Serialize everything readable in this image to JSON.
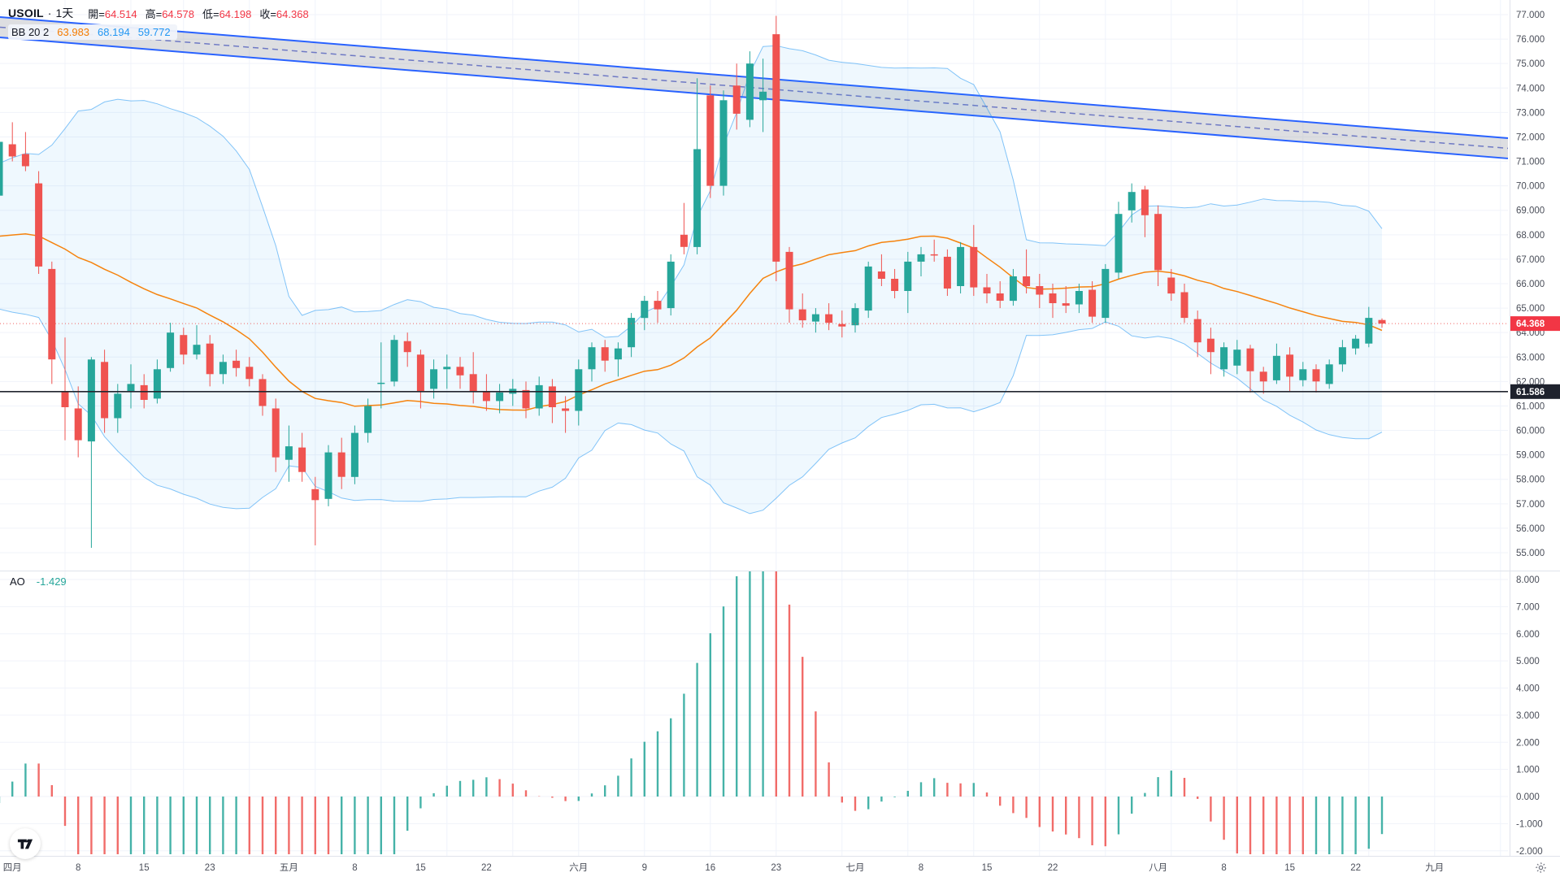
{
  "header": {
    "symbol": "USOIL",
    "separator": "·",
    "interval": "1天",
    "ohlc": [
      {
        "label": "開=",
        "value": "64.514"
      },
      {
        "label": "高=",
        "value": "64.578"
      },
      {
        "label": "低=",
        "value": "64.198"
      },
      {
        "label": "收=",
        "value": "64.368"
      }
    ],
    "ohlc_value_color": "#f23645"
  },
  "bb_legend": {
    "title": "BB 20 2",
    "values": [
      {
        "text": "63.983",
        "color": "#f57c00"
      },
      {
        "text": "68.194",
        "color": "#2196f3"
      },
      {
        "text": "59.772",
        "color": "#2196f3"
      }
    ]
  },
  "ao_legend": {
    "title": "AO",
    "value": "-1.429",
    "color": "#26a69a"
  },
  "chart_data": {
    "type": "candlestick",
    "symbol": "USOIL",
    "timeframe": "1D",
    "price_axis": {
      "min": 55,
      "max": 77,
      "step": 1,
      "decimals": 3
    },
    "ao_axis": {
      "min": -2,
      "max": 8,
      "step": 1,
      "decimals": 3
    },
    "time_labels": [
      {
        "i": 1,
        "t": "四月"
      },
      {
        "i": 6,
        "t": "8"
      },
      {
        "i": 11,
        "t": "15"
      },
      {
        "i": 16,
        "t": "23"
      },
      {
        "i": 22,
        "t": "五月"
      },
      {
        "i": 27,
        "t": "8"
      },
      {
        "i": 32,
        "t": "15"
      },
      {
        "i": 37,
        "t": "22"
      },
      {
        "i": 44,
        "t": "六月"
      },
      {
        "i": 49,
        "t": "9"
      },
      {
        "i": 54,
        "t": "16"
      },
      {
        "i": 59,
        "t": "23"
      },
      {
        "i": 65,
        "t": "七月"
      },
      {
        "i": 70,
        "t": "8"
      },
      {
        "i": 75,
        "t": "15"
      },
      {
        "i": 80,
        "t": "22"
      },
      {
        "i": 88,
        "t": "八月"
      },
      {
        "i": 93,
        "t": "8"
      },
      {
        "i": 98,
        "t": "15"
      },
      {
        "i": 103,
        "t": "22"
      },
      {
        "i": 109,
        "t": "九月"
      }
    ],
    "week_gridline_indices": [
      5,
      10,
      14,
      19,
      24,
      29,
      34,
      39,
      44,
      49,
      54,
      59,
      64,
      69,
      74,
      79,
      84,
      89,
      94,
      99,
      104,
      109,
      114
    ],
    "bars_format": [
      "date",
      "open",
      "high",
      "low",
      "close"
    ],
    "bars": [
      [
        "3-31",
        69.6,
        72.0,
        69.4,
        71.8
      ],
      [
        "4-1",
        71.7,
        72.6,
        71.0,
        71.2
      ],
      [
        "4-2",
        71.3,
        72.2,
        70.6,
        70.8
      ],
      [
        "4-3",
        70.1,
        70.6,
        66.4,
        66.7
      ],
      [
        "4-4",
        66.6,
        66.9,
        61.9,
        62.9
      ],
      [
        "4-7",
        61.6,
        63.8,
        59.6,
        60.95
      ],
      [
        "4-8",
        60.9,
        61.8,
        58.9,
        59.6
      ],
      [
        "4-9",
        59.55,
        63.0,
        55.2,
        62.9
      ],
      [
        "4-10",
        62.8,
        63.3,
        59.9,
        60.5
      ],
      [
        "4-11",
        60.5,
        61.9,
        59.9,
        61.5
      ],
      [
        "4-14",
        61.6,
        62.7,
        60.9,
        61.9
      ],
      [
        "4-15",
        61.85,
        62.3,
        60.9,
        61.25
      ],
      [
        "4-16",
        61.3,
        62.9,
        61.1,
        62.5
      ],
      [
        "4-17",
        62.55,
        64.4,
        62.4,
        64.0
      ],
      [
        "4-21",
        63.9,
        64.2,
        62.7,
        63.1
      ],
      [
        "4-22",
        63.1,
        64.3,
        62.9,
        63.5
      ],
      [
        "4-23",
        63.55,
        63.9,
        61.8,
        62.3
      ],
      [
        "4-24",
        62.3,
        63.1,
        61.9,
        62.8
      ],
      [
        "4-25",
        62.85,
        63.3,
        62.2,
        62.55
      ],
      [
        "4-28",
        62.6,
        63.0,
        61.8,
        62.1
      ],
      [
        "4-29",
        62.1,
        62.3,
        60.6,
        61.0
      ],
      [
        "4-30",
        60.9,
        61.3,
        58.3,
        58.9
      ],
      [
        "5-1",
        58.8,
        60.2,
        57.9,
        59.35
      ],
      [
        "5-2",
        59.3,
        59.9,
        57.9,
        58.3
      ],
      [
        "5-5",
        57.6,
        58.1,
        55.3,
        57.15
      ],
      [
        "5-6",
        57.2,
        59.4,
        56.9,
        59.1
      ],
      [
        "5-7",
        59.1,
        59.7,
        57.6,
        58.1
      ],
      [
        "5-8",
        58.1,
        60.2,
        57.8,
        59.9
      ],
      [
        "5-9",
        59.9,
        61.3,
        59.5,
        61.0
      ],
      [
        "5-12",
        61.9,
        63.6,
        60.9,
        61.95
      ],
      [
        "5-13",
        62.0,
        63.9,
        61.8,
        63.7
      ],
      [
        "5-14",
        63.65,
        64.0,
        62.6,
        63.2
      ],
      [
        "5-15",
        63.1,
        63.3,
        60.9,
        61.6
      ],
      [
        "5-16",
        61.7,
        62.9,
        61.3,
        62.5
      ],
      [
        "5-19",
        62.5,
        63.1,
        61.7,
        62.6
      ],
      [
        "5-20",
        62.6,
        63.0,
        61.7,
        62.25
      ],
      [
        "5-21",
        62.3,
        63.2,
        61.1,
        61.6
      ],
      [
        "5-22",
        61.6,
        62.3,
        60.8,
        61.2
      ],
      [
        "5-23",
        61.2,
        61.9,
        60.7,
        61.55
      ],
      [
        "5-26",
        61.5,
        62.1,
        61.0,
        61.7
      ],
      [
        "5-27",
        61.65,
        62.0,
        60.5,
        60.9
      ],
      [
        "5-28",
        60.9,
        62.2,
        60.6,
        61.85
      ],
      [
        "5-29",
        61.8,
        62.1,
        60.3,
        60.95
      ],
      [
        "5-30",
        60.9,
        61.4,
        59.9,
        60.8
      ],
      [
        "6-2",
        60.8,
        62.9,
        60.2,
        62.5
      ],
      [
        "6-3",
        62.5,
        63.6,
        62.0,
        63.4
      ],
      [
        "6-4",
        63.4,
        63.7,
        62.4,
        62.85
      ],
      [
        "6-5",
        62.9,
        63.6,
        62.2,
        63.35
      ],
      [
        "6-6",
        63.4,
        64.8,
        63.0,
        64.6
      ],
      [
        "6-9",
        64.6,
        65.5,
        64.1,
        65.3
      ],
      [
        "6-10",
        65.3,
        65.7,
        64.4,
        64.95
      ],
      [
        "6-11",
        65.0,
        67.2,
        64.7,
        66.9
      ],
      [
        "6-12",
        68.0,
        69.3,
        67.2,
        67.5
      ],
      [
        "6-13",
        67.5,
        74.4,
        67.2,
        71.5
      ],
      [
        "6-16",
        73.7,
        74.1,
        69.5,
        70.0
      ],
      [
        "6-17",
        70.0,
        73.9,
        69.6,
        73.5
      ],
      [
        "6-18",
        74.1,
        75.0,
        72.3,
        72.95
      ],
      [
        "6-19",
        72.7,
        75.5,
        72.4,
        75.0
      ],
      [
        "6-20",
        73.5,
        75.2,
        72.2,
        73.85
      ],
      [
        "6-23",
        76.2,
        76.95,
        66.1,
        66.9
      ],
      [
        "6-24",
        67.3,
        67.5,
        64.4,
        64.95
      ],
      [
        "6-25",
        64.95,
        65.6,
        64.2,
        64.5
      ],
      [
        "6-26",
        64.45,
        65.0,
        64.0,
        64.75
      ],
      [
        "6-27",
        64.75,
        65.2,
        64.1,
        64.4
      ],
      [
        "6-30",
        64.35,
        64.9,
        63.8,
        64.25
      ],
      [
        "7-1",
        64.3,
        65.2,
        64.0,
        65.0
      ],
      [
        "7-2",
        64.9,
        66.9,
        64.6,
        66.7
      ],
      [
        "7-3",
        66.5,
        67.2,
        65.9,
        66.2
      ],
      [
        "7-4",
        66.2,
        66.6,
        65.4,
        65.7
      ],
      [
        "7-7",
        65.7,
        67.3,
        64.8,
        66.9
      ],
      [
        "7-8",
        66.9,
        67.5,
        66.3,
        67.2
      ],
      [
        "7-9",
        67.2,
        67.8,
        66.9,
        67.15
      ],
      [
        "7-10",
        67.1,
        67.4,
        65.5,
        65.8
      ],
      [
        "7-11",
        65.9,
        67.7,
        65.6,
        67.5
      ],
      [
        "7-14",
        67.5,
        68.4,
        65.5,
        65.85
      ],
      [
        "7-15",
        65.85,
        66.4,
        65.2,
        65.6
      ],
      [
        "7-16",
        65.6,
        66.1,
        65.0,
        65.3
      ],
      [
        "7-17",
        65.3,
        66.6,
        65.1,
        66.3
      ],
      [
        "7-18",
        66.3,
        67.4,
        65.6,
        65.9
      ],
      [
        "7-21",
        65.9,
        66.4,
        65.0,
        65.55
      ],
      [
        "7-22",
        65.6,
        66.0,
        64.6,
        65.2
      ],
      [
        "7-23",
        65.2,
        65.9,
        64.8,
        65.1
      ],
      [
        "7-24",
        65.15,
        66.0,
        64.8,
        65.7
      ],
      [
        "7-25",
        65.75,
        66.1,
        64.4,
        64.65
      ],
      [
        "7-28",
        64.6,
        66.8,
        64.4,
        66.6
      ],
      [
        "7-29",
        66.45,
        69.35,
        66.2,
        68.85
      ],
      [
        "7-30",
        69.0,
        70.1,
        68.5,
        69.75
      ],
      [
        "7-31",
        69.85,
        70.0,
        67.9,
        68.8
      ],
      [
        "8-1",
        68.85,
        69.2,
        65.9,
        66.55
      ],
      [
        "8-4",
        66.25,
        66.6,
        65.3,
        65.6
      ],
      [
        "8-5",
        65.65,
        66.0,
        64.4,
        64.6
      ],
      [
        "8-6",
        64.55,
        64.9,
        63.0,
        63.6
      ],
      [
        "8-7",
        63.75,
        64.2,
        62.3,
        63.2
      ],
      [
        "8-8",
        62.5,
        63.6,
        62.2,
        63.4
      ],
      [
        "8-11",
        62.65,
        63.7,
        62.3,
        63.3
      ],
      [
        "8-12",
        63.35,
        63.5,
        61.55,
        62.42
      ],
      [
        "8-13",
        62.4,
        62.6,
        61.5,
        62.0
      ],
      [
        "8-14",
        62.05,
        63.55,
        61.9,
        63.05
      ],
      [
        "8-15",
        63.1,
        63.4,
        61.6,
        62.2
      ],
      [
        "8-18",
        62.05,
        62.8,
        61.8,
        62.5
      ],
      [
        "8-19",
        62.5,
        62.7,
        61.55,
        62.0
      ],
      [
        "8-20",
        61.9,
        62.9,
        61.7,
        62.7
      ],
      [
        "8-21",
        62.7,
        63.7,
        62.4,
        63.4
      ],
      [
        "8-22",
        63.35,
        63.9,
        63.1,
        63.75
      ],
      [
        "8-25",
        63.55,
        65.05,
        63.4,
        64.6
      ],
      [
        "8-26",
        64.514,
        64.578,
        64.198,
        64.368
      ]
    ],
    "seed_medians": [
      73.5,
      73.0,
      72.5,
      72.0,
      71.9,
      71.6,
      71.8,
      72.3,
      72.5,
      71.1,
      70.6,
      70.7,
      69.0,
      68.7,
      70.2,
      69.9,
      68.4,
      68.3,
      66.3,
      66.4,
      67.0,
      66.1,
      66.3,
      67.7,
      66.6,
      67.2,
      67.5,
      66.9,
      67.2,
      68.1,
      68.3,
      69.1,
      69.5
    ],
    "indicators": {
      "bollinger": {
        "length": 20,
        "mult": 2
      },
      "ao": {
        "fast": 5,
        "slow": 34
      }
    },
    "drawings": {
      "channel": {
        "price_left_top": 76.9,
        "price_right_top": 71.95,
        "width_price": 0.83
      },
      "hline": {
        "price": 61.586,
        "label": "61.586"
      },
      "last_price": {
        "price": 64.368,
        "label": "64.368",
        "direction": "down"
      }
    },
    "colors": {
      "up": "#26a69a",
      "down": "#ef5350",
      "bb_line": "#2196f3",
      "bb_fill": "rgba(33,150,243,0.07)",
      "bb_basis": "#f57c00",
      "channel_line": "#2962ff",
      "channel_fill": "rgba(149,152,161,0.32)",
      "channel_mid": "rgba(90,103,190,0.85)",
      "grid": "#f0f3fa",
      "axis_text": "#4a4e59",
      "axis_border": "#e0e3eb",
      "last_price_line": "#ef5350",
      "hline": "#22262f",
      "badge_down": "#f23645",
      "badge_dark": "#1e222d"
    }
  }
}
